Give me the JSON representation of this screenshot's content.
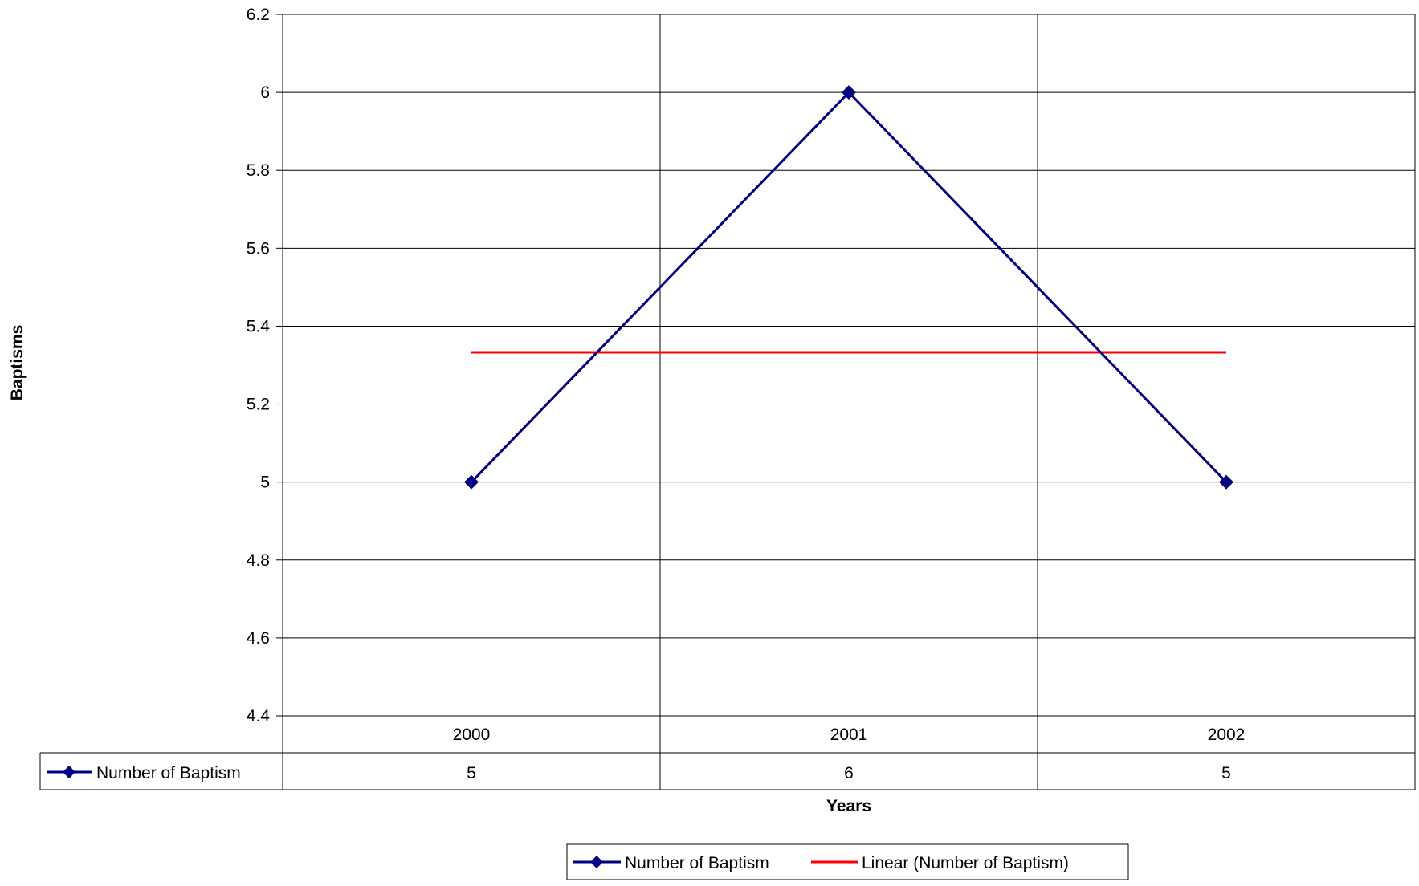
{
  "chart_data": {
    "type": "line",
    "categories": [
      "2000",
      "2001",
      "2002"
    ],
    "series": [
      {
        "name": "Number of Baptism",
        "values": [
          5,
          6,
          5
        ],
        "color": "#000080",
        "marker": "diamond"
      }
    ],
    "trendline": {
      "name": "Linear (Number of Baptism)",
      "type": "linear",
      "values": [
        5.333,
        5.333,
        5.333
      ],
      "color": "#ff0000"
    },
    "xlabel": "Years",
    "ylabel": "Baptisms",
    "ylim": [
      4.4,
      6.2
    ],
    "yticks": [
      "6.2",
      "6",
      "5.8",
      "5.6",
      "5.4",
      "5.2",
      "5",
      "4.8",
      "4.6",
      "4.4"
    ],
    "grid": true,
    "data_table": {
      "row_label": "Number of Baptism",
      "values": [
        "5",
        "6",
        "5"
      ]
    },
    "legend": {
      "position": "bottom",
      "entries": [
        "Number of Baptism",
        "Linear (Number of Baptism)"
      ]
    }
  }
}
